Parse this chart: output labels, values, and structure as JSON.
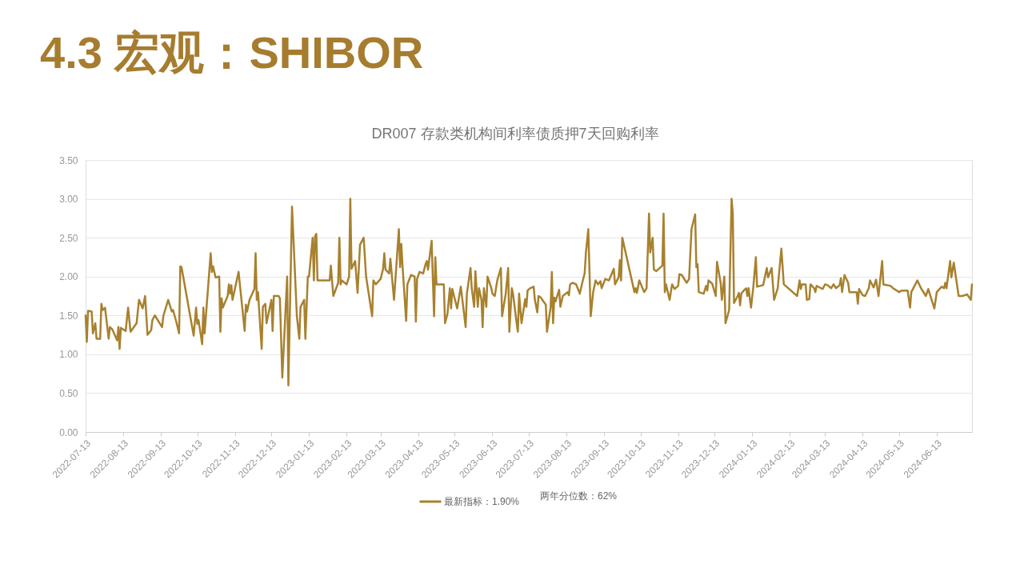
{
  "chart_data": {
    "type": "line",
    "title": "4.3 宏观：SHIBOR",
    "subtitle": "DR007  存款类机构间利率债质押7天回购利率",
    "annotations": [
      "两年分位数：62%"
    ],
    "legend": "bottom",
    "grid": "y",
    "line_style": "solid",
    "xlim": [
      "2022-07-13",
      "2024-07-12"
    ],
    "xticks": [
      "2022-07-13",
      "2022-08-13",
      "2022-09-13",
      "2022-10-13",
      "2022-11-13",
      "2022-12-13",
      "2023-01-13",
      "2023-02-13",
      "2023-03-13",
      "2023-04-13",
      "2023-05-13",
      "2023-06-13",
      "2023-07-13",
      "2023-08-13",
      "2023-09-13",
      "2023-10-13",
      "2023-11-13",
      "2023-12-13",
      "2024-01-13",
      "2024-02-13",
      "2024-03-13",
      "2024-04-13",
      "2024-05-13",
      "2024-06-13"
    ],
    "ylim": [
      0,
      3.5
    ],
    "yticks": [
      {
        "value": 0,
        "label": "0.00"
      },
      {
        "value": 0.5,
        "label": "0.50"
      },
      {
        "value": 1,
        "label": "1.00"
      },
      {
        "value": 1.5,
        "label": "1.50"
      },
      {
        "value": 2,
        "label": "2.00"
      },
      {
        "value": 2.5,
        "label": "2.50"
      },
      {
        "value": 3,
        "label": "3.00"
      },
      {
        "value": 3.5,
        "label": "3.50"
      }
    ],
    "x": [
      "2022-07-13",
      "2022-07-14",
      "2022-07-15",
      "2022-07-18",
      "2022-07-19",
      "2022-07-21",
      "2022-07-22",
      "2022-07-25",
      "2022-07-26",
      "2022-07-27",
      "2022-07-29",
      "2022-08-01",
      "2022-08-02",
      "2022-08-04",
      "2022-08-08",
      "2022-08-09",
      "2022-08-10",
      "2022-08-11",
      "2022-08-15",
      "2022-08-17",
      "2022-08-19",
      "2022-08-24",
      "2022-08-26",
      "2022-08-29",
      "2022-08-31",
      "2022-09-02",
      "2022-09-05",
      "2022-09-06",
      "2022-09-08",
      "2022-09-14",
      "2022-09-15",
      "2022-09-19",
      "2022-09-22",
      "2022-09-23",
      "2022-09-26",
      "2022-09-28",
      "2022-09-29",
      "2022-09-30",
      "2022-10-10",
      "2022-10-12",
      "2022-10-13",
      "2022-10-14",
      "2022-10-17",
      "2022-10-18",
      "2022-10-19",
      "2022-10-24",
      "2022-10-25",
      "2022-10-26",
      "2022-10-28",
      "2022-10-31",
      "2022-11-01",
      "2022-11-02",
      "2022-11-03",
      "2022-11-07",
      "2022-11-08",
      "2022-11-09",
      "2022-11-10",
      "2022-11-11",
      "2022-11-16",
      "2022-11-21",
      "2022-11-22",
      "2022-11-23",
      "2022-11-25",
      "2022-11-29",
      "2022-11-30",
      "2022-12-01",
      "2022-12-02",
      "2022-12-05",
      "2022-12-06",
      "2022-12-08",
      "2022-12-09",
      "2022-12-13",
      "2022-12-14",
      "2022-12-15",
      "2022-12-19",
      "2022-12-20",
      "2022-12-22",
      "2022-12-26",
      "2022-12-27",
      "2022-12-30",
      "2023-01-03",
      "2023-01-05",
      "2023-01-06",
      "2023-01-09",
      "2023-01-10",
      "2023-01-12",
      "2023-01-13",
      "2023-01-16",
      "2023-01-17",
      "2023-01-18",
      "2023-01-19",
      "2023-01-20",
      "2023-01-30",
      "2023-01-31",
      "2023-02-02",
      "2023-02-06",
      "2023-02-07",
      "2023-02-08",
      "2023-02-09",
      "2023-02-13",
      "2023-02-15",
      "2023-02-16",
      "2023-02-17",
      "2023-02-20",
      "2023-02-22",
      "2023-02-24",
      "2023-02-27",
      "2023-03-01",
      "2023-03-06",
      "2023-03-07",
      "2023-03-09",
      "2023-03-13",
      "2023-03-15",
      "2023-03-16",
      "2023-03-17",
      "2023-03-20",
      "2023-03-21",
      "2023-03-24",
      "2023-03-28",
      "2023-03-29",
      "2023-03-30",
      "2023-03-31",
      "2023-04-03",
      "2023-04-04",
      "2023-04-07",
      "2023-04-10",
      "2023-04-11",
      "2023-04-12",
      "2023-04-14",
      "2023-04-17",
      "2023-04-19",
      "2023-04-20",
      "2023-04-21",
      "2023-04-24",
      "2023-04-25",
      "2023-04-26",
      "2023-04-27",
      "2023-04-28",
      "2023-05-04",
      "2023-05-05",
      "2023-05-07",
      "2023-05-09",
      "2023-05-10",
      "2023-05-11",
      "2023-05-15",
      "2023-05-18",
      "2023-05-22",
      "2023-05-23",
      "2023-05-26",
      "2023-05-27",
      "2023-05-29",
      "2023-05-30",
      "2023-06-01",
      "2023-06-02",
      "2023-06-04",
      "2023-06-05",
      "2023-06-06",
      "2023-06-08",
      "2023-06-09",
      "2023-06-12",
      "2023-06-13",
      "2023-06-15",
      "2023-06-17",
      "2023-06-20",
      "2023-06-21",
      "2023-06-24",
      "2023-06-26",
      "2023-06-27",
      "2023-06-29",
      "2023-06-30",
      "2023-07-03",
      "2023-07-04",
      "2023-07-05",
      "2023-07-07",
      "2023-07-10",
      "2023-07-11",
      "2023-07-12",
      "2023-07-14",
      "2023-07-17",
      "2023-07-18",
      "2023-07-20",
      "2023-07-21",
      "2023-07-23",
      "2023-07-25",
      "2023-07-27",
      "2023-07-28",
      "2023-07-31",
      "2023-08-01",
      "2023-08-02",
      "2023-08-03",
      "2023-08-04",
      "2023-08-07",
      "2023-08-08",
      "2023-08-10",
      "2023-08-14",
      "2023-08-15",
      "2023-08-16",
      "2023-08-18",
      "2023-08-21",
      "2023-08-24",
      "2023-08-26",
      "2023-08-28",
      "2023-08-29",
      "2023-08-31",
      "2023-09-02",
      "2023-09-04",
      "2023-09-06",
      "2023-09-08",
      "2023-09-10",
      "2023-09-11",
      "2023-09-14",
      "2023-09-17",
      "2023-09-21",
      "2023-09-22",
      "2023-09-25",
      "2023-09-26",
      "2023-09-27",
      "2023-09-28",
      "2023-10-08",
      "2023-10-09",
      "2023-10-10",
      "2023-10-12",
      "2023-10-16",
      "2023-10-18",
      "2023-10-20",
      "2023-10-21",
      "2023-10-23",
      "2023-10-24",
      "2023-10-26",
      "2023-10-31",
      "2023-11-01",
      "2023-11-02",
      "2023-11-03",
      "2023-11-06",
      "2023-11-08",
      "2023-11-10",
      "2023-11-13",
      "2023-11-14",
      "2023-11-16",
      "2023-11-20",
      "2023-11-22",
      "2023-11-24",
      "2023-11-27",
      "2023-11-28",
      "2023-11-29",
      "2023-11-30",
      "2023-12-04",
      "2023-12-06",
      "2023-12-07",
      "2023-12-08",
      "2023-12-11",
      "2023-12-14",
      "2023-12-15",
      "2023-12-18",
      "2023-12-19",
      "2023-12-21",
      "2023-12-22",
      "2023-12-25",
      "2023-12-27",
      "2023-12-28",
      "2023-12-29",
      "2024-01-01",
      "2024-01-02",
      "2024-01-03",
      "2024-01-04",
      "2024-01-06",
      "2024-01-08",
      "2024-01-09",
      "2024-01-10",
      "2024-01-12",
      "2024-01-14",
      "2024-01-16",
      "2024-01-17",
      "2024-01-22",
      "2024-01-25",
      "2024-01-26",
      "2024-01-29",
      "2024-01-31",
      "2024-02-03",
      "2024-02-06",
      "2024-02-08",
      "2024-02-19",
      "2024-02-21",
      "2024-02-22",
      "2024-02-23",
      "2024-02-26",
      "2024-02-27",
      "2024-02-29",
      "2024-03-01",
      "2024-03-04",
      "2024-03-05",
      "2024-03-06",
      "2024-03-11",
      "2024-03-13",
      "2024-03-15",
      "2024-03-18",
      "2024-03-20",
      "2024-03-22",
      "2024-03-25",
      "2024-03-26",
      "2024-03-27",
      "2024-03-29",
      "2024-04-01",
      "2024-04-02",
      "2024-04-08",
      "2024-04-09",
      "2024-04-10",
      "2024-04-13",
      "2024-04-15",
      "2024-04-18",
      "2024-04-19",
      "2024-04-22",
      "2024-04-24",
      "2024-04-26",
      "2024-04-29",
      "2024-04-30",
      "2024-05-06",
      "2024-05-08",
      "2024-05-13",
      "2024-05-15",
      "2024-05-20",
      "2024-05-22",
      "2024-05-23",
      "2024-05-28",
      "2024-05-31",
      "2024-06-04",
      "2024-06-06",
      "2024-06-11",
      "2024-06-13",
      "2024-06-17",
      "2024-06-19",
      "2024-06-20",
      "2024-06-21",
      "2024-06-24",
      "2024-06-25",
      "2024-06-27",
      "2024-07-01",
      "2024-07-04",
      "2024-07-08",
      "2024-07-11",
      "2024-07-12"
    ],
    "series": [
      {
        "name": "最新指标：1.90%",
        "color": "#a8812f",
        "values": [
          1.5,
          1.16,
          1.56,
          1.55,
          1.27,
          1.4,
          1.2,
          1.2,
          1.65,
          1.57,
          1.6,
          1.2,
          1.35,
          1.32,
          1.18,
          1.35,
          1.07,
          1.34,
          1.3,
          1.6,
          1.29,
          1.4,
          1.7,
          1.59,
          1.75,
          1.25,
          1.31,
          1.44,
          1.5,
          1.35,
          1.49,
          1.7,
          1.55,
          1.57,
          1.4,
          1.27,
          2.13,
          2.12,
          1.24,
          1.6,
          1.39,
          1.44,
          1.13,
          1.6,
          1.27,
          2.3,
          2.06,
          2.13,
          1.99,
          2.0,
          1.29,
          1.72,
          1.6,
          1.75,
          1.9,
          1.78,
          1.89,
          1.7,
          2.06,
          1.3,
          1.64,
          1.55,
          1.7,
          1.84,
          2.3,
          1.7,
          1.8,
          1.07,
          1.61,
          1.65,
          1.4,
          1.7,
          1.3,
          1.75,
          1.75,
          1.72,
          0.7,
          2.0,
          0.6,
          2.9,
          1.49,
          1.2,
          1.61,
          1.7,
          1.2,
          2.0,
          2.0,
          2.5,
          1.95,
          2.52,
          2.55,
          1.95,
          1.95,
          2.14,
          1.75,
          1.92,
          2.5,
          1.9,
          1.95,
          1.9,
          2.0,
          3.0,
          2.1,
          2.2,
          1.79,
          2.41,
          2.5,
          2.0,
          1.49,
          1.95,
          1.9,
          1.97,
          2.1,
          2.3,
          2.09,
          2.04,
          2.23,
          1.7,
          2.61,
          2.12,
          2.42,
          2.14,
          1.43,
          1.9,
          2.02,
          2.0,
          1.42,
          1.97,
          2.06,
          2.04,
          2.16,
          2.2,
          2.09,
          2.46,
          1.96,
          1.49,
          2.25,
          1.9,
          1.9,
          1.4,
          1.52,
          1.85,
          1.59,
          1.84,
          1.59,
          1.87,
          1.35,
          1.78,
          2.11,
          1.85,
          1.61,
          2.07,
          1.61,
          1.85,
          1.7,
          1.35,
          1.85,
          1.61,
          2.0,
          1.86,
          1.78,
          1.75,
          1.95,
          2.11,
          1.49,
          1.78,
          2.11,
          1.29,
          1.85,
          1.78,
          1.4,
          1.29,
          1.78,
          1.4,
          1.71,
          1.61,
          1.82,
          1.85,
          1.87,
          1.7,
          1.54,
          1.75,
          1.73,
          1.68,
          1.64,
          1.29,
          1.61,
          2.06,
          1.4,
          1.73,
          1.68,
          1.83,
          1.61,
          1.75,
          1.8,
          1.76,
          1.9,
          1.92,
          1.9,
          1.78,
          1.92,
          2.04,
          2.3,
          2.61,
          1.49,
          1.8,
          1.95,
          1.9,
          1.94,
          1.85,
          1.97,
          1.95,
          2.1,
          1.9,
          1.99,
          2.21,
          1.95,
          2.5,
          1.8,
          1.85,
          1.79,
          1.95,
          1.8,
          1.85,
          2.81,
          2.31,
          2.5,
          2.09,
          2.07,
          2.14,
          2.81,
          1.8,
          1.9,
          1.7,
          1.9,
          1.84,
          1.88,
          2.03,
          2.02,
          1.92,
          1.97,
          2.61,
          2.8,
          2.12,
          2.16,
          1.8,
          1.78,
          1.88,
          1.82,
          1.95,
          1.91,
          1.75,
          2.19,
          1.92,
          1.7,
          2.0,
          1.4,
          1.57,
          3.0,
          2.81,
          1.66,
          1.75,
          1.79,
          1.63,
          1.78,
          1.82,
          1.85,
          1.75,
          1.85,
          1.6,
          1.88,
          2.25,
          1.87,
          1.89,
          2.11,
          1.99,
          2.11,
          1.7,
          1.85,
          2.36,
          1.9,
          1.75,
          1.95,
          1.84,
          1.9,
          1.9,
          1.7,
          1.71,
          1.9,
          1.85,
          1.8,
          1.88,
          1.84,
          1.9,
          1.89,
          1.85,
          1.9,
          1.85,
          1.89,
          1.98,
          1.8,
          2.02,
          1.92,
          1.8,
          1.8,
          1.65,
          1.84,
          1.76,
          1.75,
          1.85,
          1.95,
          1.86,
          1.96,
          1.75,
          2.2,
          1.9,
          1.88,
          1.85,
          1.8,
          1.82,
          1.82,
          1.6,
          1.8,
          1.95,
          1.85,
          1.75,
          1.84,
          1.59,
          1.8,
          1.87,
          1.85,
          1.92,
          1.85,
          2.2,
          1.99,
          2.18,
          1.75,
          1.75,
          1.77,
          1.7,
          1.9
        ]
      }
    ]
  }
}
